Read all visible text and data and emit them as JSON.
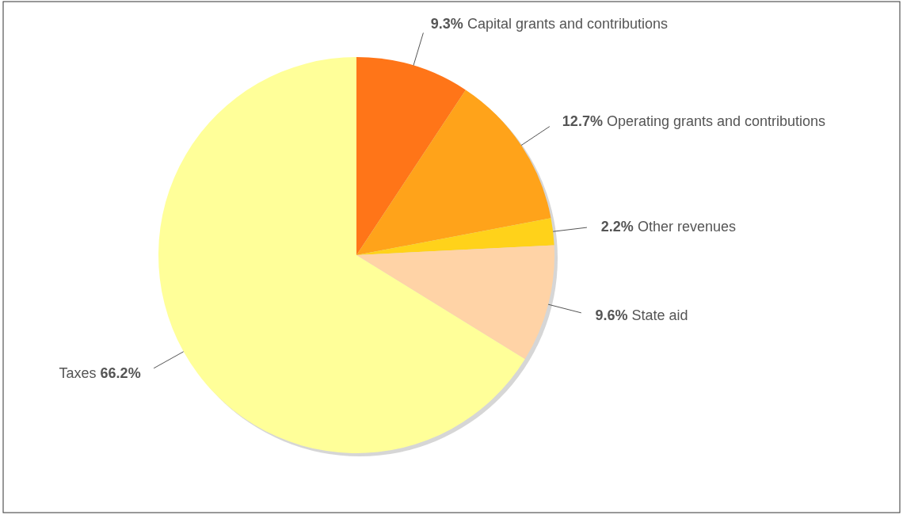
{
  "chart_data": {
    "type": "pie",
    "categories": [
      "Capital grants and contributions",
      "Operating grants and contributions",
      "Other revenues",
      "State aid",
      "Taxes"
    ],
    "values": [
      9.3,
      12.7,
      2.2,
      9.6,
      66.2
    ],
    "value_labels": [
      "9.3%",
      "12.7%",
      "2.2%",
      "9.6%",
      "66.2%"
    ],
    "colors": [
      "#ff7518",
      "#ffa31a",
      "#ffd21a",
      "#ffd3a6",
      "#ffff99"
    ]
  }
}
